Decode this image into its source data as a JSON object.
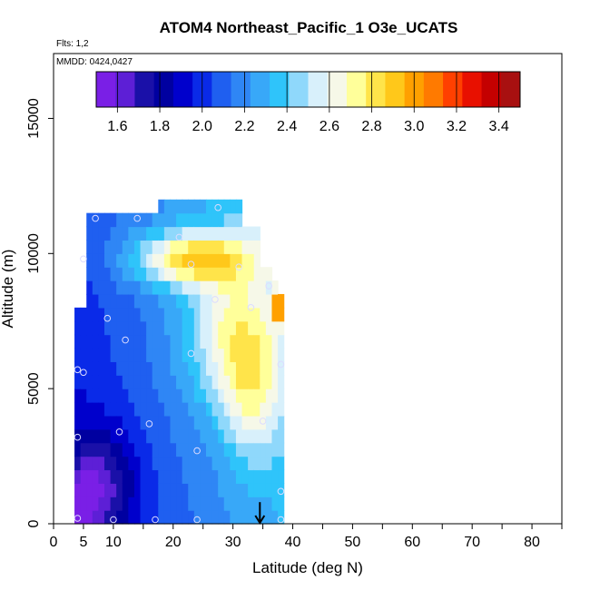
{
  "chart_data": {
    "type": "heatmap",
    "title": "ATOM4 Northeast_Pacific_1 O3e_UCATS",
    "flights_label": "Flts: 1,2",
    "dates_label": "MMDD: 0424,0427",
    "xlabel": "Latitude (deg N)",
    "ylabel": "Altitude (m)",
    "xlim": [
      0,
      85
    ],
    "ylim": [
      0,
      17400
    ],
    "x_ticks": [
      0,
      5,
      10,
      20,
      30,
      40,
      50,
      60,
      70,
      80
    ],
    "y_ticks": [
      0,
      5000,
      10000,
      15000
    ],
    "colorbar": {
      "min": 1.5,
      "max": 3.5,
      "tick_values": [
        1.6,
        1.8,
        2.0,
        2.2,
        2.4,
        2.6,
        2.8,
        3.0,
        3.2,
        3.4
      ],
      "colors": [
        "#7a1fe6",
        "#5d1fd6",
        "#1a10a8",
        "#0000a0",
        "#0000cc",
        "#0a2ae8",
        "#1f5ff0",
        "#2f86f5",
        "#38a8f8",
        "#2fc4fa",
        "#8fd8fb",
        "#d8f0fb",
        "#f6f8e8",
        "#ffff9a",
        "#ffe44a",
        "#ffc81a",
        "#ffa000",
        "#ff7a00",
        "#ff4000",
        "#e81000",
        "#c40000",
        "#a81010"
      ],
      "placement": "top"
    },
    "grid_lat_step": 1,
    "grid_alt_step": 500,
    "domain_profile": [
      {
        "lat": 3.5,
        "top": 6000
      },
      {
        "lat": 4.0,
        "top": 8000
      },
      {
        "lat": 6.0,
        "top": 11500
      },
      {
        "lat": 18.0,
        "top": 12000
      },
      {
        "lat": 27.0,
        "top": 11800
      },
      {
        "lat": 32.0,
        "top": 11000
      },
      {
        "lat": 35.0,
        "top": 9500
      },
      {
        "lat": 37.0,
        "top": 9000
      },
      {
        "lat": 38.0,
        "top": 8500
      }
    ],
    "domain_lat_max": 38.0,
    "features": [
      {
        "name": "upper-band",
        "lat": 23,
        "alt": 9800,
        "lat_width": 10,
        "alt_width": 1000,
        "value": 0.6
      },
      {
        "name": "tongue",
        "lat": 30,
        "alt": 7000,
        "lat_width": 8,
        "alt_width": 2600,
        "value": 0.4
      },
      {
        "name": "lower-tongue",
        "lat": 33,
        "alt": 4500,
        "lat_width": 5,
        "alt_width": 2500,
        "value": 0.3
      },
      {
        "name": "low-purple",
        "lat": 8,
        "alt": 1500,
        "lat_width": 6,
        "alt_width": 2000,
        "value": -0.35
      },
      {
        "name": "surface-purple",
        "lat": 4,
        "alt": 500,
        "lat_width": 3,
        "alt_width": 1200,
        "value": -0.3
      }
    ],
    "hotspot": {
      "lat": 37.5,
      "alt": 8000,
      "value": 3.35
    },
    "observation_points": [
      {
        "lat": 7,
        "alt": 11300
      },
      {
        "lat": 14,
        "alt": 11300
      },
      {
        "lat": 27.5,
        "alt": 11700
      },
      {
        "lat": 21,
        "alt": 10600
      },
      {
        "lat": 5,
        "alt": 9800
      },
      {
        "lat": 23,
        "alt": 9600
      },
      {
        "lat": 31,
        "alt": 9500
      },
      {
        "lat": 36,
        "alt": 8800
      },
      {
        "lat": 27,
        "alt": 8300
      },
      {
        "lat": 33,
        "alt": 8000
      },
      {
        "lat": 9,
        "alt": 7600
      },
      {
        "lat": 12,
        "alt": 6800
      },
      {
        "lat": 23,
        "alt": 6300
      },
      {
        "lat": 4,
        "alt": 5700
      },
      {
        "lat": 5,
        "alt": 5600
      },
      {
        "lat": 38,
        "alt": 5900
      },
      {
        "lat": 35,
        "alt": 3800
      },
      {
        "lat": 16,
        "alt": 3700
      },
      {
        "lat": 4,
        "alt": 3200
      },
      {
        "lat": 11,
        "alt": 3400
      },
      {
        "lat": 24,
        "alt": 2700
      },
      {
        "lat": 38,
        "alt": 1200
      },
      {
        "lat": 4,
        "alt": 200
      },
      {
        "lat": 10,
        "alt": 150
      },
      {
        "lat": 17,
        "alt": 150
      },
      {
        "lat": 24,
        "alt": 150
      },
      {
        "lat": 38,
        "alt": 150
      }
    ],
    "arrow_marker": {
      "lat": 34.5,
      "alt_top": 800,
      "alt_bottom": 0
    },
    "grid": false
  }
}
